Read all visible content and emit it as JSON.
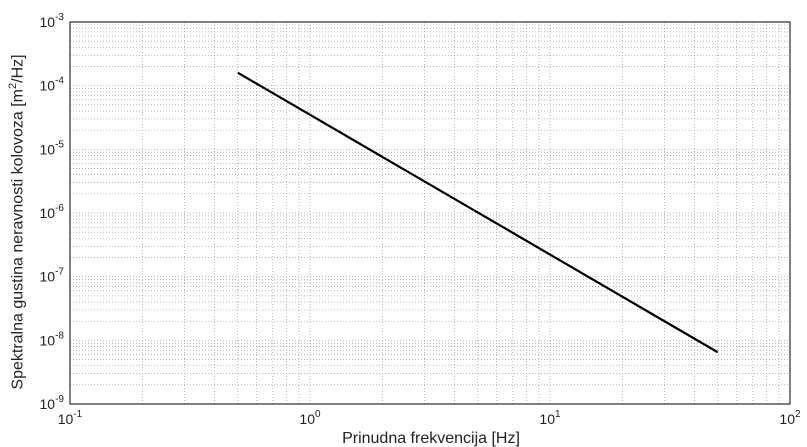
{
  "chart_data": {
    "type": "line",
    "xscale": "log",
    "yscale": "log",
    "xlim": [
      0.1,
      100
    ],
    "ylim": [
      1e-09,
      0.001
    ],
    "grid": true,
    "xlabel": "Prinudna frekvencija [Hz]",
    "ylabel_parts": {
      "before": "Spektralna gustina neravnosti kolovoza [m",
      "sup": "2",
      "after": "/Hz]"
    },
    "xticks": [
      {
        "mant": "10",
        "exp": "-1"
      },
      {
        "mant": "10",
        "exp": "0"
      },
      {
        "mant": "10",
        "exp": "1"
      },
      {
        "mant": "10",
        "exp": "2"
      }
    ],
    "yticks": [
      {
        "mant": "10",
        "exp": "-9"
      },
      {
        "mant": "10",
        "exp": "-8"
      },
      {
        "mant": "10",
        "exp": "-7"
      },
      {
        "mant": "10",
        "exp": "-6"
      },
      {
        "mant": "10",
        "exp": "-5"
      },
      {
        "mant": "10",
        "exp": "-4"
      },
      {
        "mant": "10",
        "exp": "-3"
      }
    ],
    "series": [
      {
        "x": [
          0.5,
          50
        ],
        "y": [
          0.00016,
          6.5e-09
        ],
        "color": "#000000"
      }
    ]
  }
}
